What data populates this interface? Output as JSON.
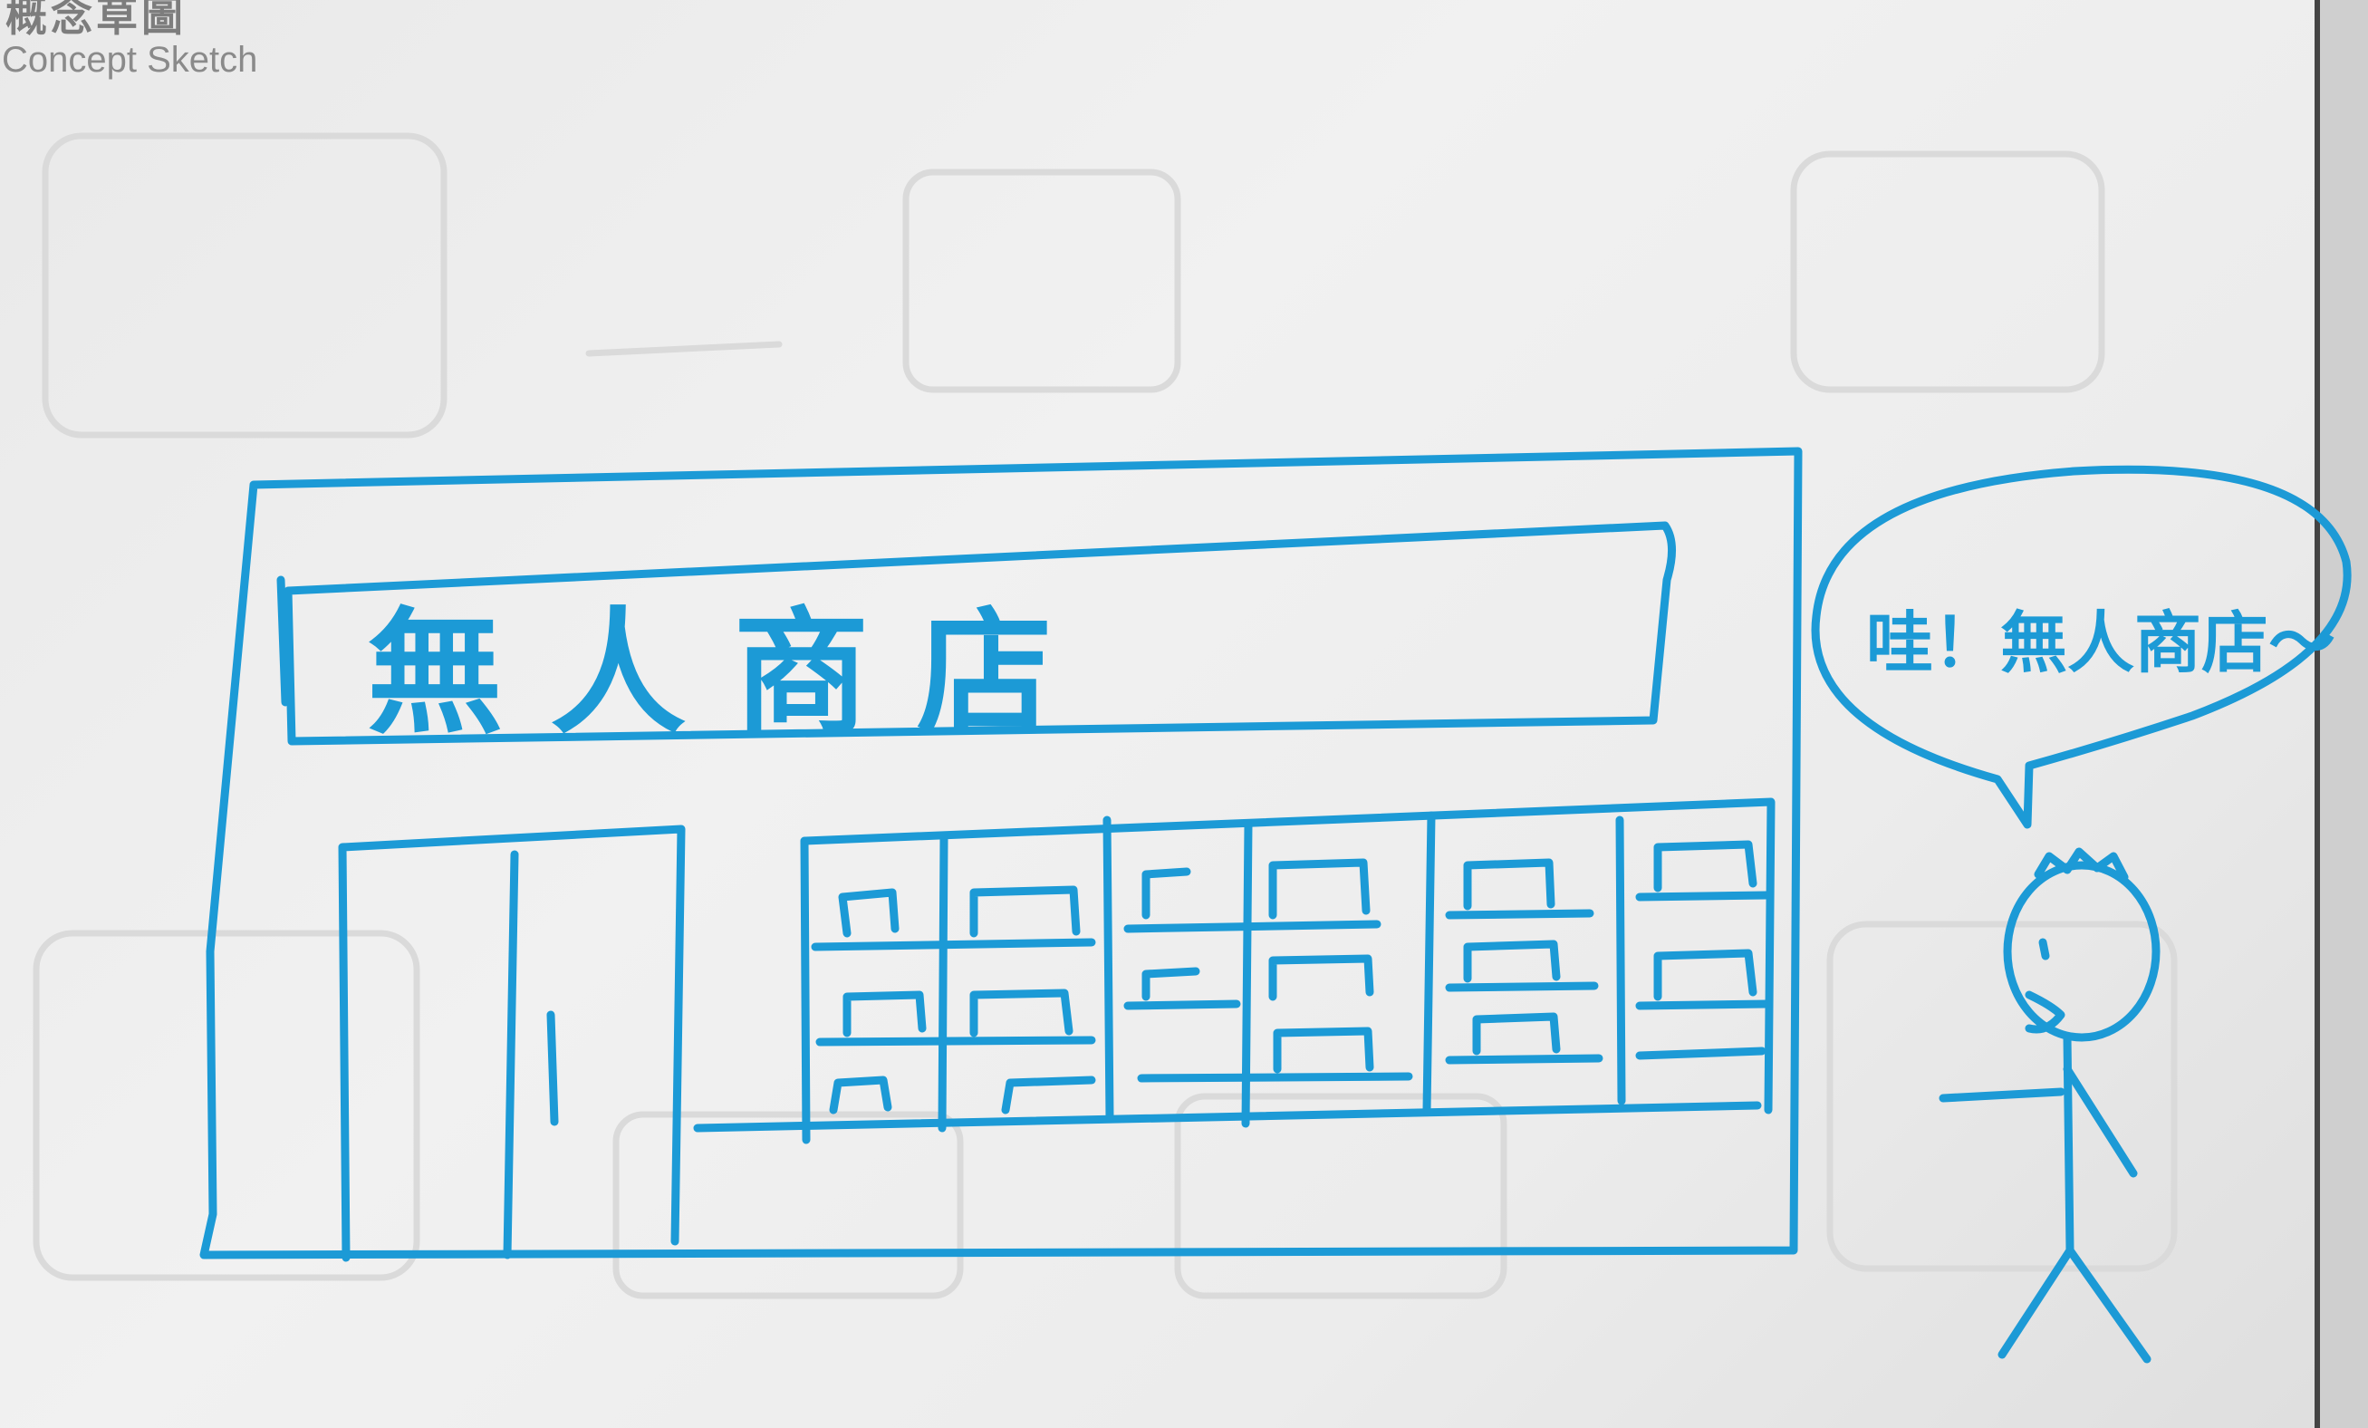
{
  "header": {
    "title_zh": "概念草圖",
    "title_en": "Concept Sketch"
  },
  "sketch": {
    "store_sign": "無 人 商 店",
    "speech_bubble": "哇！無人商店～"
  },
  "colors": {
    "ink": "#1c9ad6",
    "header_text": "#7d7d7d",
    "paper": "#efefef"
  }
}
